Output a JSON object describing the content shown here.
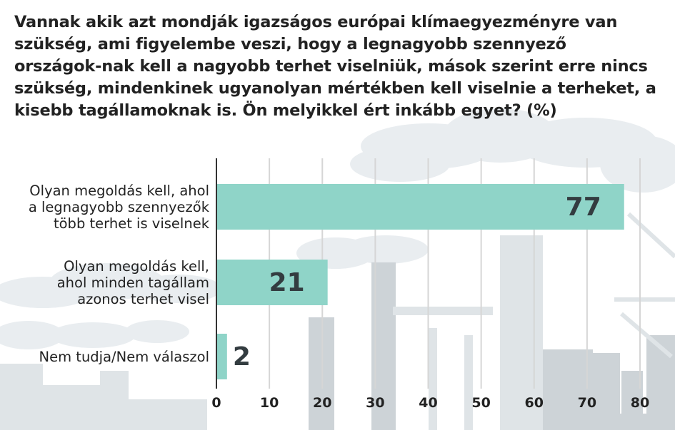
{
  "title": "Vannak akik azt mondják igazságos európai klímaegyezményre van szükség, ami figyelembe veszi, hogy a legnagyobb szennyező országok-nak kell a nagyobb terhet viselniük, mások szerint erre nincs szükség, mindenkinek ugyanolyan mértékben kell viselnie a terheket, a kisebb tagállamoknak is. Ön melyikkel ért inkább egyet? (%)",
  "colors": {
    "bar": "#8fd4c8",
    "text": "#222222",
    "value_text": "#333c40",
    "grid": "#d6d6d6",
    "axis": "#333333",
    "background_art": "#e6ebee"
  },
  "chart_data": {
    "type": "bar",
    "orientation": "horizontal",
    "title": "Vannak akik azt mondják igazságos európai klímaegyezményre van szükség, ami figyelembe veszi, hogy a legnagyobb szennyező országok-nak kell a nagyobb terhet viselniük, mások szerint erre nincs szükség, mindenkinek ugyanolyan mértékben kell viselnie a terheket, a kisebb tagállamoknak is. Ön melyikkel ért inkább egyet? (%)",
    "categories": [
      [
        "Olyan megoldás kell, ahol",
        "a legnagyobb szennyezők",
        "több terhet is viselnek"
      ],
      [
        "Olyan megoldás kell,",
        "ahol minden tagállam",
        "azonos terhet visel"
      ],
      [
        "Nem tudja/Nem válaszol"
      ]
    ],
    "values": [
      77,
      21,
      2
    ],
    "data_labels": [
      "77",
      "21",
      "2"
    ],
    "xlim": [
      0,
      80
    ],
    "xticks": [
      0,
      10,
      20,
      30,
      40,
      50,
      60,
      70,
      80
    ],
    "xlabel": "",
    "ylabel": "",
    "grid": true,
    "legend": "none"
  }
}
